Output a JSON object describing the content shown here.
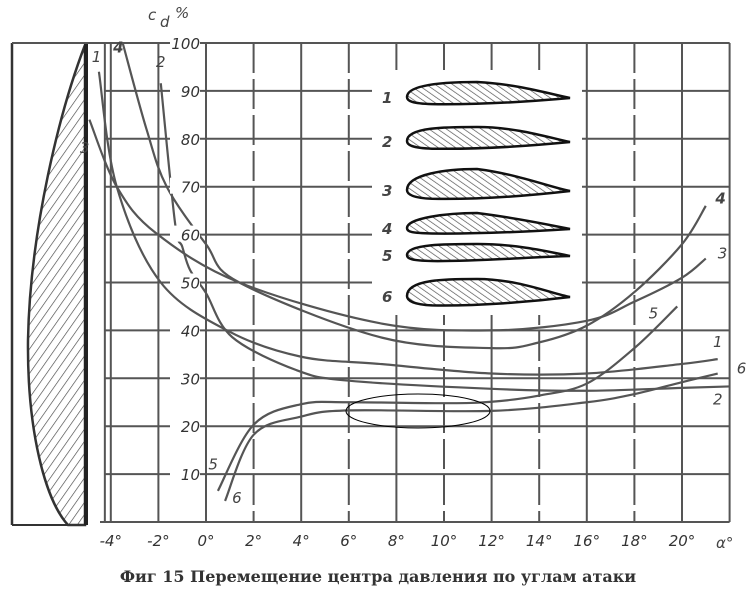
{
  "chart_data": {
    "type": "line",
    "caption": "Фиг 15 Перемещение центра давления по углам атаки",
    "ylabel": "c_d %",
    "ylabel_main": "c",
    "ylabel_sub": "d",
    "ylabel_unit": "%",
    "xlabel": "α°",
    "xlim": [
      -4.25,
      22
    ],
    "ylim": [
      0,
      100
    ],
    "grid": true,
    "x_ticks": [
      -4,
      -2,
      0,
      2,
      4,
      6,
      8,
      10,
      12,
      14,
      16,
      18,
      20
    ],
    "x_tick_labels": [
      "-4°",
      "-2°",
      "0°",
      "2°",
      "4°",
      "6°",
      "8°",
      "10°",
      "12°",
      "14°",
      "16°",
      "18°",
      "20°"
    ],
    "y_ticks": [
      10,
      20,
      30,
      40,
      50,
      60,
      70,
      80,
      90,
      100
    ],
    "y_tick_labels": [
      "10",
      "20",
      "30",
      "40",
      "50",
      "60",
      "70",
      "80",
      "90",
      "100"
    ],
    "series": [
      {
        "name": "1",
        "x": [
          -4.5,
          -3.75,
          -1.9,
          1,
          4,
          7.3,
          12,
          16,
          20,
          21.5
        ],
        "y": [
          94,
          70,
          50,
          39.7,
          34.5,
          33,
          31,
          31,
          33,
          34
        ]
      },
      {
        "name": "2",
        "x": [
          -1.9,
          -1.3,
          -1,
          -0.67,
          0,
          1.1,
          3.8,
          6,
          12,
          16,
          20,
          22
        ],
        "y": [
          91.6,
          62.4,
          57.5,
          52.6,
          47.8,
          38.6,
          31.7,
          29.5,
          27.8,
          27.4,
          28,
          28.3
        ]
      },
      {
        "name": "3",
        "x": [
          -4.9,
          -3.75,
          -2.1,
          1.4,
          7.3,
          12,
          16,
          18,
          20,
          21
        ],
        "y": [
          84,
          70,
          60.3,
          50,
          41.5,
          40,
          42,
          46,
          51,
          55
        ]
      },
      {
        "name": "4",
        "x": [
          -3.5,
          -2.5,
          -1.65,
          0,
          1.4,
          7.3,
          12,
          14,
          16,
          18,
          20,
          21
        ],
        "y": [
          100,
          82,
          70,
          58,
          50,
          38.6,
          36.3,
          37.5,
          41,
          48,
          58,
          66
        ]
      },
      {
        "name": "5",
        "x": [
          0.5,
          2,
          4,
          6,
          10,
          12,
          14,
          16,
          18,
          19.8
        ],
        "y": [
          6.5,
          20.3,
          24.6,
          25,
          24.8,
          25.1,
          26.4,
          28.9,
          36.3,
          45
        ]
      },
      {
        "name": "6",
        "x": [
          0.8,
          2,
          4,
          6,
          12,
          16,
          18,
          20,
          21.5
        ],
        "y": [
          4.4,
          18.2,
          22,
          23.3,
          23.2,
          25,
          26.7,
          29.2,
          31
        ]
      }
    ],
    "profiles": [
      {
        "label": "1"
      },
      {
        "label": "2"
      },
      {
        "label": "3"
      },
      {
        "label": "4"
      },
      {
        "label": "5"
      },
      {
        "label": "6"
      }
    ],
    "colors": {
      "ink": "#555555",
      "background": "#ffffff"
    }
  }
}
